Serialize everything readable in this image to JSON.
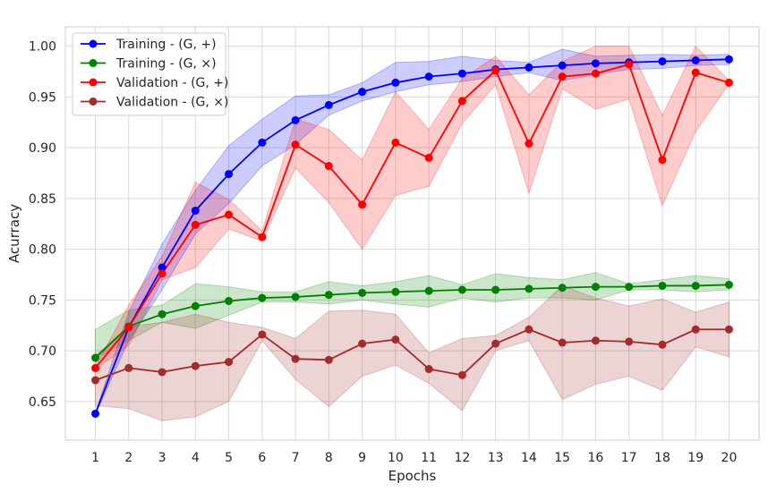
{
  "chart_data": {
    "type": "line",
    "xlabel": "Epochs",
    "ylabel": "Acurracy",
    "x": [
      1,
      2,
      3,
      4,
      5,
      6,
      7,
      8,
      9,
      10,
      11,
      12,
      13,
      14,
      15,
      16,
      17,
      18,
      19,
      20
    ],
    "xlim": [
      0.1,
      20.9
    ],
    "ylim": [
      0.612,
      1.019
    ],
    "yticks": [
      0.65,
      0.7,
      0.75,
      0.8,
      0.85,
      0.9,
      0.95,
      1.0
    ],
    "ytick_labels": [
      "0.65",
      "0.70",
      "0.75",
      "0.80",
      "0.85",
      "0.90",
      "0.95",
      "1.00"
    ],
    "grid": true,
    "legend_position": "upper-left",
    "series": [
      {
        "name": "Training - (G, +)",
        "color": "#0000ff",
        "band_color": "#0000ff",
        "values": [
          0.638,
          0.723,
          0.782,
          0.838,
          0.874,
          0.905,
          0.927,
          0.942,
          0.955,
          0.964,
          0.97,
          0.973,
          0.977,
          0.979,
          0.981,
          0.983,
          0.984,
          0.985,
          0.986,
          0.987
        ],
        "lower": [
          0.637,
          0.71,
          0.76,
          0.815,
          0.845,
          0.882,
          0.903,
          0.932,
          0.946,
          0.955,
          0.962,
          0.965,
          0.97,
          0.974,
          0.966,
          0.972,
          0.977,
          0.978,
          0.981,
          0.982
        ],
        "upper": [
          0.639,
          0.738,
          0.805,
          0.858,
          0.902,
          0.928,
          0.951,
          0.952,
          0.964,
          0.984,
          0.985,
          0.99,
          0.986,
          0.984,
          0.997,
          0.99,
          0.991,
          0.992,
          0.991,
          0.992
        ]
      },
      {
        "name": "Training - (G, ×)",
        "color": "#008000",
        "band_color": "#008000",
        "values": [
          0.693,
          0.724,
          0.736,
          0.744,
          0.749,
          0.752,
          0.753,
          0.755,
          0.757,
          0.758,
          0.759,
          0.76,
          0.76,
          0.761,
          0.762,
          0.763,
          0.763,
          0.764,
          0.764,
          0.765
        ],
        "lower": [
          0.692,
          0.71,
          0.728,
          0.722,
          0.735,
          0.748,
          0.748,
          0.746,
          0.75,
          0.746,
          0.743,
          0.752,
          0.748,
          0.752,
          0.752,
          0.75,
          0.76,
          0.76,
          0.758,
          0.76
        ],
        "upper": [
          0.721,
          0.74,
          0.745,
          0.766,
          0.763,
          0.758,
          0.758,
          0.768,
          0.764,
          0.768,
          0.774,
          0.765,
          0.776,
          0.772,
          0.77,
          0.777,
          0.766,
          0.77,
          0.774,
          0.771
        ]
      },
      {
        "name": "Validation - (G, +)",
        "color": "#ff0000",
        "band_color": "#ff0000",
        "values": [
          0.683,
          0.723,
          0.776,
          0.824,
          0.834,
          0.812,
          0.903,
          0.882,
          0.844,
          0.905,
          0.89,
          0.946,
          0.976,
          0.904,
          0.97,
          0.973,
          0.982,
          0.888,
          0.974,
          0.964
        ],
        "lower": [
          0.682,
          0.705,
          0.77,
          0.782,
          0.82,
          0.808,
          0.88,
          0.846,
          0.8,
          0.853,
          0.862,
          0.924,
          0.962,
          0.855,
          0.958,
          0.938,
          0.948,
          0.843,
          0.916,
          0.963
        ],
        "upper": [
          0.684,
          0.745,
          0.793,
          0.866,
          0.849,
          0.818,
          0.928,
          0.918,
          0.888,
          0.955,
          0.918,
          0.968,
          0.99,
          0.952,
          0.985,
          1.0,
          1.0,
          0.932,
          1.0,
          0.966
        ]
      },
      {
        "name": "Validation - (G, ×)",
        "color": "#a52a2a",
        "band_color": "#a52a2a",
        "values": [
          0.671,
          0.683,
          0.679,
          0.685,
          0.689,
          0.716,
          0.692,
          0.691,
          0.707,
          0.711,
          0.682,
          0.676,
          0.707,
          0.721,
          0.708,
          0.71,
          0.709,
          0.706,
          0.721,
          0.721
        ],
        "lower": [
          0.646,
          0.643,
          0.631,
          0.635,
          0.65,
          0.71,
          0.672,
          0.645,
          0.675,
          0.686,
          0.668,
          0.641,
          0.7,
          0.71,
          0.652,
          0.667,
          0.675,
          0.661,
          0.704,
          0.694
        ],
        "upper": [
          0.695,
          0.724,
          0.728,
          0.736,
          0.728,
          0.723,
          0.712,
          0.739,
          0.74,
          0.736,
          0.698,
          0.712,
          0.715,
          0.733,
          0.764,
          0.752,
          0.744,
          0.751,
          0.738,
          0.748
        ]
      }
    ]
  }
}
